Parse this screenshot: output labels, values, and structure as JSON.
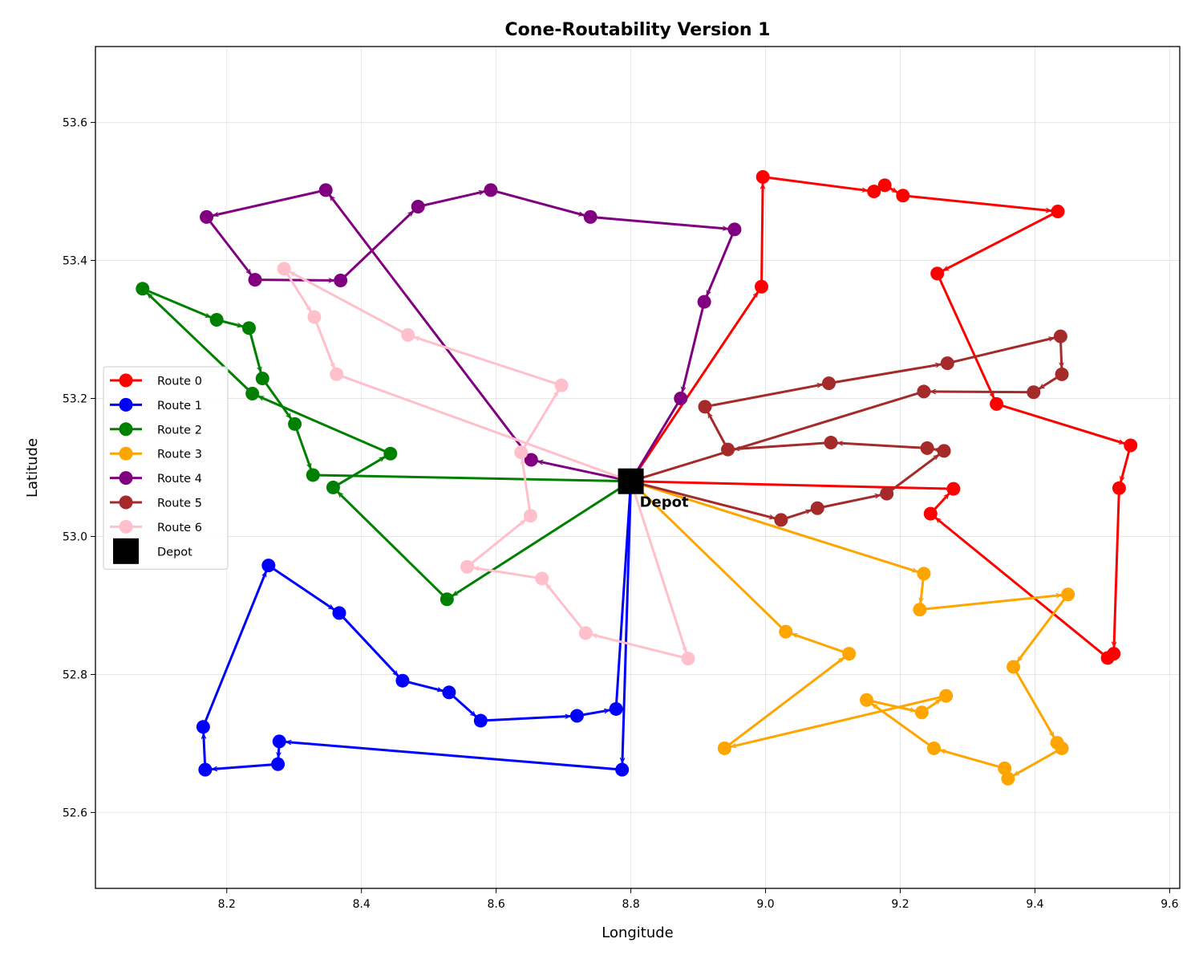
{
  "chart_data": {
    "type": "line",
    "title": "Cone-Routability Version 1",
    "xlabel": "Longitude",
    "ylabel": "Latitude",
    "xlim": [
      8.005,
      9.615
    ],
    "ylim": [
      52.49,
      53.71
    ],
    "xticks": [
      "8.2",
      "8.4",
      "8.6",
      "8.8",
      "9.0",
      "9.2",
      "9.4",
      "9.6"
    ],
    "yticks": [
      "52.6",
      "52.8",
      "53.0",
      "53.2",
      "53.4",
      "53.6"
    ],
    "grid": true,
    "legend_position": "center-left",
    "depot": {
      "label": "Depot",
      "legend_label": "Depot",
      "x": 8.8,
      "y": 53.08,
      "color": "#000000"
    },
    "series": [
      {
        "name": "Route 0",
        "color": "#ff0000",
        "points": [
          [
            8.8,
            53.08
          ],
          [
            8.994,
            53.362
          ],
          [
            8.996,
            53.521
          ],
          [
            9.161,
            53.5
          ],
          [
            9.177,
            53.509
          ],
          [
            9.204,
            53.494
          ],
          [
            9.434,
            53.471
          ],
          [
            9.255,
            53.381
          ],
          [
            9.343,
            53.192
          ],
          [
            9.542,
            53.132
          ],
          [
            9.525,
            53.07
          ],
          [
            9.517,
            52.83
          ],
          [
            9.508,
            52.824
          ],
          [
            9.245,
            53.033
          ],
          [
            9.279,
            53.069
          ],
          [
            8.8,
            53.08
          ]
        ]
      },
      {
        "name": "Route 1",
        "color": "#0000ff",
        "points": [
          [
            8.8,
            53.08
          ],
          [
            8.787,
            52.662
          ],
          [
            8.278,
            52.703
          ],
          [
            8.276,
            52.67
          ],
          [
            8.168,
            52.662
          ],
          [
            8.165,
            52.724
          ],
          [
            8.262,
            52.958
          ],
          [
            8.367,
            52.889
          ],
          [
            8.461,
            52.791
          ],
          [
            8.53,
            52.774
          ],
          [
            8.577,
            52.733
          ],
          [
            8.72,
            52.74
          ],
          [
            8.778,
            52.75
          ],
          [
            8.8,
            53.08
          ]
        ]
      },
      {
        "name": "Route 2",
        "color": "#008000",
        "points": [
          [
            8.8,
            53.08
          ],
          [
            8.527,
            52.909
          ],
          [
            8.358,
            53.071
          ],
          [
            8.443,
            53.12
          ],
          [
            8.238,
            53.207
          ],
          [
            8.075,
            53.359
          ],
          [
            8.185,
            53.314
          ],
          [
            8.233,
            53.302
          ],
          [
            8.253,
            53.229
          ],
          [
            8.301,
            53.163
          ],
          [
            8.328,
            53.089
          ],
          [
            8.8,
            53.08
          ]
        ]
      },
      {
        "name": "Route 3",
        "color": "#ffa500",
        "points": [
          [
            8.8,
            53.08
          ],
          [
            9.235,
            52.946
          ],
          [
            9.229,
            52.894
          ],
          [
            9.449,
            52.916
          ],
          [
            9.368,
            52.811
          ],
          [
            9.433,
            52.701
          ],
          [
            9.44,
            52.693
          ],
          [
            9.36,
            52.649
          ],
          [
            9.355,
            52.664
          ],
          [
            9.25,
            52.693
          ],
          [
            9.15,
            52.763
          ],
          [
            9.232,
            52.745
          ],
          [
            9.268,
            52.769
          ],
          [
            8.939,
            52.693
          ],
          [
            9.124,
            52.83
          ],
          [
            9.03,
            52.862
          ],
          [
            8.8,
            53.08
          ]
        ]
      },
      {
        "name": "Route 4",
        "color": "#800080",
        "points": [
          [
            8.8,
            53.08
          ],
          [
            8.652,
            53.111
          ],
          [
            8.347,
            53.502
          ],
          [
            8.17,
            53.463
          ],
          [
            8.242,
            53.372
          ],
          [
            8.369,
            53.371
          ],
          [
            8.484,
            53.478
          ],
          [
            8.592,
            53.502
          ],
          [
            8.74,
            53.463
          ],
          [
            8.954,
            53.445
          ],
          [
            8.909,
            53.34
          ],
          [
            8.874,
            53.2
          ],
          [
            8.8,
            53.08
          ]
        ]
      },
      {
        "name": "Route 5",
        "color": "#a52a2a",
        "points": [
          [
            8.8,
            53.08
          ],
          [
            9.023,
            53.024
          ],
          [
            9.077,
            53.041
          ],
          [
            9.18,
            53.062
          ],
          [
            9.265,
            53.124
          ],
          [
            9.24,
            53.128
          ],
          [
            9.097,
            53.136
          ],
          [
            8.944,
            53.126
          ],
          [
            8.91,
            53.188
          ],
          [
            9.094,
            53.222
          ],
          [
            9.27,
            53.251
          ],
          [
            9.438,
            53.29
          ],
          [
            9.44,
            53.235
          ],
          [
            9.398,
            53.209
          ],
          [
            9.235,
            53.21
          ],
          [
            8.8,
            53.08
          ]
        ]
      },
      {
        "name": "Route 6",
        "color": "#ffc0cb",
        "points": [
          [
            8.8,
            53.08
          ],
          [
            8.885,
            52.823
          ],
          [
            8.733,
            52.86
          ],
          [
            8.668,
            52.939
          ],
          [
            8.557,
            52.956
          ],
          [
            8.651,
            53.03
          ],
          [
            8.637,
            53.122
          ],
          [
            8.697,
            53.219
          ],
          [
            8.469,
            53.292
          ],
          [
            8.285,
            53.388
          ],
          [
            8.33,
            53.318
          ],
          [
            8.363,
            53.235
          ],
          [
            8.8,
            53.08
          ]
        ]
      }
    ]
  }
}
